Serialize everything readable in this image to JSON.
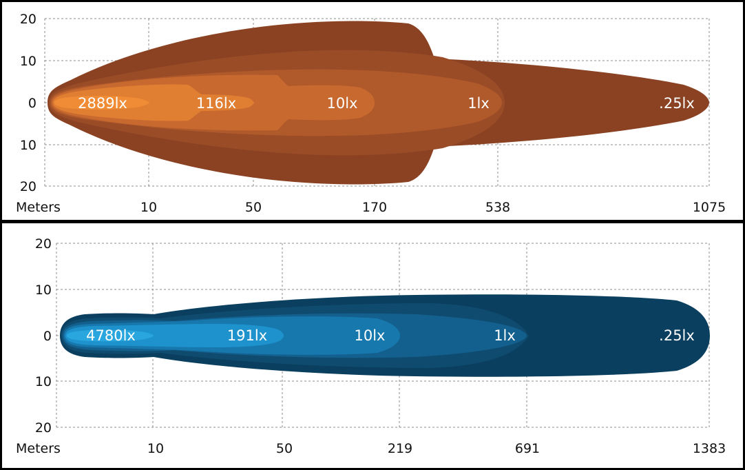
{
  "chart_data": [
    {
      "type": "area",
      "title": "",
      "xlabel": "Meters",
      "ylabel": "",
      "x_ticks": [
        "10",
        "50",
        "170",
        "538",
        "1075"
      ],
      "y_ticks": [
        "20",
        "10",
        "0",
        "10",
        "20"
      ],
      "ylim": [
        -20,
        20
      ],
      "grid": true,
      "lux_labels": [
        "2889lx",
        "116lx",
        "10lx",
        "1lx",
        ".25lx"
      ],
      "colors": [
        "#8a4223",
        "#9a4c27",
        "#b0592b",
        "#c86a2f",
        "#e07e32",
        "#ef8c35"
      ]
    },
    {
      "type": "area",
      "title": "",
      "xlabel": "Meters",
      "ylabel": "",
      "x_ticks": [
        "10",
        "50",
        "219",
        "691",
        "1383"
      ],
      "y_ticks": [
        "20",
        "10",
        "0",
        "10",
        "20"
      ],
      "ylim": [
        -20,
        20
      ],
      "grid": true,
      "lux_labels": [
        "4780lx",
        "191lx",
        "10lx",
        "1lx",
        ".25lx"
      ],
      "colors": [
        "#0b3f5f",
        "#0f4b6f",
        "#13608e",
        "#1778ad",
        "#1e92cc",
        "#2aa6de"
      ]
    }
  ]
}
